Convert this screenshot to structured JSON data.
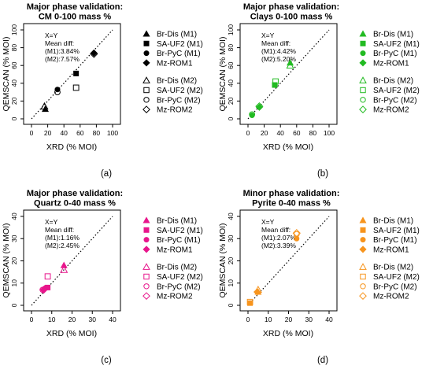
{
  "chart_data": [
    {
      "type": "scatter",
      "panel_label": "(a)",
      "title_lines": [
        "Major phase validation:",
        "CM 0-100 mass %"
      ],
      "xlabel": "XRD (% MOI)",
      "ylabel": "QEMSCAN (% MOI)",
      "xlim": [
        0,
        100
      ],
      "ylim": [
        0,
        100
      ],
      "ticks": [
        0,
        20,
        40,
        60,
        80,
        100
      ],
      "color": "#000000",
      "annotation": [
        "X=Y",
        "Mean diff:",
        "(M1):3.84%",
        "(M2):7.57%"
      ],
      "reference_line": "X=Y",
      "legend": [
        "Br-Dis (M1)",
        "SA-UF2 (M1)",
        "Br-PyC (M1)",
        "Mz-ROM1",
        "Br-Dis (M2)",
        "SA-UF2 (M2)",
        "Br-PyC (M2)",
        "Mz-ROM2"
      ],
      "series": [
        {
          "name": "Br-Dis (M1)",
          "marker": "triangle",
          "filled": true,
          "points": [
            [
              17,
              11
            ]
          ]
        },
        {
          "name": "SA-UF2 (M1)",
          "marker": "square",
          "filled": true,
          "points": [
            [
              55,
              51
            ]
          ]
        },
        {
          "name": "Br-PyC (M1)",
          "marker": "circle",
          "filled": true,
          "points": [
            [
              32,
              33
            ]
          ]
        },
        {
          "name": "Mz-ROM1",
          "marker": "diamond",
          "filled": true,
          "points": [
            [
              77,
              74
            ]
          ]
        },
        {
          "name": "Br-Dis (M2)",
          "marker": "triangle",
          "filled": false,
          "points": [
            [
              16,
              14
            ]
          ]
        },
        {
          "name": "SA-UF2 (M2)",
          "marker": "square",
          "filled": false,
          "points": [
            [
              55,
              35
            ]
          ]
        },
        {
          "name": "Br-PyC (M2)",
          "marker": "circle",
          "filled": false,
          "points": [
            [
              32,
              30
            ]
          ]
        },
        {
          "name": "Mz-ROM2",
          "marker": "diamond",
          "filled": false,
          "points": [
            [
              77,
              73
            ]
          ]
        }
      ]
    },
    {
      "type": "scatter",
      "panel_label": "(b)",
      "title_lines": [
        "Major phase validation:",
        "Clays 0-100 mass %"
      ],
      "xlabel": "XRD (% MOI)",
      "ylabel": "QEMSCAN (% MOI)",
      "xlim": [
        0,
        100
      ],
      "ylim": [
        0,
        100
      ],
      "ticks": [
        0,
        20,
        40,
        60,
        80,
        100
      ],
      "color": "#22bb22",
      "annotation": [
        "X=Y",
        "Mean diff:",
        "(M1):4.42%",
        "(M2):5.20%"
      ],
      "reference_line": "X=Y",
      "legend": [
        "Br-Dis (M1)",
        "SA-UF2 (M1)",
        "Br-PyC (M1)",
        "Mz-ROM1",
        "Br-Dis (M2)",
        "SA-UF2 (M2)",
        "Br-PyC (M2)",
        "Mz-ROM2"
      ],
      "series": [
        {
          "name": "Br-Dis (M1)",
          "marker": "triangle",
          "filled": true,
          "points": [
            [
              52,
              63
            ]
          ]
        },
        {
          "name": "SA-UF2 (M1)",
          "marker": "square",
          "filled": true,
          "points": [
            [
              33,
              38
            ]
          ]
        },
        {
          "name": "Br-PyC (M1)",
          "marker": "circle",
          "filled": true,
          "points": [
            [
              5,
              4
            ]
          ]
        },
        {
          "name": "Mz-ROM1",
          "marker": "diamond",
          "filled": true,
          "points": [
            [
              14,
              13
            ]
          ]
        },
        {
          "name": "Br-Dis (M2)",
          "marker": "triangle",
          "filled": false,
          "points": [
            [
              52,
              60
            ]
          ]
        },
        {
          "name": "SA-UF2 (M2)",
          "marker": "square",
          "filled": false,
          "points": [
            [
              34,
              42
            ]
          ]
        },
        {
          "name": "Br-PyC (M2)",
          "marker": "circle",
          "filled": false,
          "points": [
            [
              5,
              5
            ]
          ]
        },
        {
          "name": "Mz-ROM2",
          "marker": "diamond",
          "filled": false,
          "points": [
            [
              14,
              14
            ]
          ]
        }
      ]
    },
    {
      "type": "scatter",
      "panel_label": "(c)",
      "title_lines": [
        "Major phase validation:",
        "Quartz 0-40 mass %"
      ],
      "xlabel": "XRD (% MOI)",
      "ylabel": "QEMSCAN (% MOI)",
      "xlim": [
        0,
        40
      ],
      "ylim": [
        0,
        40
      ],
      "ticks": [
        0,
        10,
        20,
        30,
        40
      ],
      "color": "#e8168c",
      "annotation": [
        "X=Y",
        "Mean diff:",
        "(M1):1.16%",
        "(M2):2.45%"
      ],
      "reference_line": "X=Y",
      "legend": [
        "Br-Dis (M1)",
        "SA-UF2 (M1)",
        "Br-PyC (M1)",
        "Mz-ROM1",
        "Br-Dis (M2)",
        "SA-UF2 (M2)",
        "Br-PyC (M2)",
        "Mz-ROM2"
      ],
      "series": [
        {
          "name": "Br-Dis (M1)",
          "marker": "triangle",
          "filled": true,
          "points": [
            [
              16,
              18
            ]
          ]
        },
        {
          "name": "SA-UF2 (M1)",
          "marker": "square",
          "filled": true,
          "points": [
            [
              8,
              8
            ]
          ]
        },
        {
          "name": "Br-PyC (M1)",
          "marker": "circle",
          "filled": true,
          "points": [
            [
              6,
              7
            ]
          ]
        },
        {
          "name": "Mz-ROM1",
          "marker": "diamond",
          "filled": true,
          "points": [
            [
              6.5,
              7.5
            ]
          ]
        },
        {
          "name": "Br-Dis (M2)",
          "marker": "triangle",
          "filled": false,
          "points": [
            [
              16,
              16
            ]
          ]
        },
        {
          "name": "SA-UF2 (M2)",
          "marker": "square",
          "filled": false,
          "points": [
            [
              8,
              13
            ]
          ]
        },
        {
          "name": "Br-PyC (M2)",
          "marker": "circle",
          "filled": false,
          "points": [
            [
              5.5,
              7
            ]
          ]
        },
        {
          "name": "Mz-ROM2",
          "marker": "diamond",
          "filled": false,
          "points": [
            [
              6,
              7
            ]
          ]
        }
      ]
    },
    {
      "type": "scatter",
      "panel_label": "(d)",
      "title_lines": [
        "Minor phase validation:",
        "Pyrite 0-40 mass %"
      ],
      "xlabel": "XRD (% MOI)",
      "ylabel": "QEMSCAN (% MOI)",
      "xlim": [
        0,
        40
      ],
      "ylim": [
        0,
        40
      ],
      "ticks": [
        0,
        10,
        20,
        30,
        40
      ],
      "color": "#f7941d",
      "annotation": [
        "X=Y",
        "Mean diff:",
        "(M1):2.07%",
        "(M2):3.39%"
      ],
      "reference_line": "X=Y",
      "legend": [
        "Br-Dis (M1)",
        "SA-UF2 (M1)",
        "Br-PyC (M1)",
        "Mz-ROM1",
        "Br-Dis (M2)",
        "SA-UF2 (M2)",
        "Br-PyC (M2)",
        "Mz-ROM2"
      ],
      "series": [
        {
          "name": "Br-Dis (M1)",
          "marker": "triangle",
          "filled": true,
          "points": [
            [
              5,
              6
            ]
          ]
        },
        {
          "name": "SA-UF2 (M1)",
          "marker": "square",
          "filled": true,
          "points": [
            [
              1,
              1
            ]
          ]
        },
        {
          "name": "Br-PyC (M1)",
          "marker": "circle",
          "filled": true,
          "points": [
            [
              24,
              30
            ]
          ]
        },
        {
          "name": "Mz-ROM1",
          "marker": "diamond",
          "filled": true,
          "points": [
            [
              4.5,
              6
            ]
          ]
        },
        {
          "name": "Br-Dis (M2)",
          "marker": "triangle",
          "filled": false,
          "points": [
            [
              5,
              7
            ]
          ]
        },
        {
          "name": "SA-UF2 (M2)",
          "marker": "square",
          "filled": false,
          "points": [
            [
              1,
              1.5
            ]
          ]
        },
        {
          "name": "Br-PyC (M2)",
          "marker": "circle",
          "filled": false,
          "points": [
            [
              24,
              32
            ]
          ]
        },
        {
          "name": "Mz-ROM2",
          "marker": "diamond",
          "filled": false,
          "points": [
            [
              24,
              32.5
            ]
          ]
        }
      ]
    }
  ]
}
